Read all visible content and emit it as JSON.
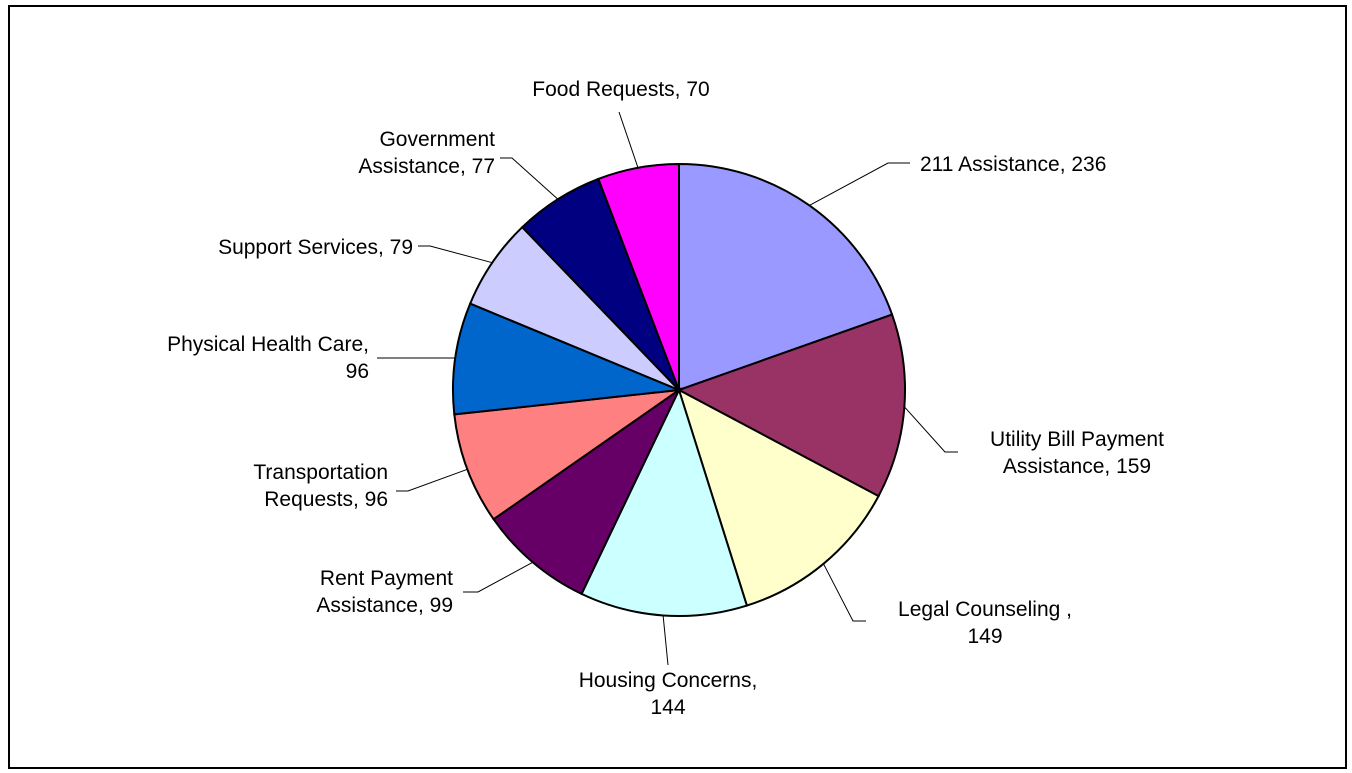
{
  "chart_data": {
    "type": "pie",
    "title": "",
    "start_angle_deg": 0,
    "direction": "clockwise",
    "slices": [
      {
        "label_lines": [
          "211 Assistance, 236"
        ],
        "category": "211 Assistance",
        "value": 236,
        "color": "#9999ff"
      },
      {
        "label_lines": [
          "Utility Bill Payment",
          "Assistance, 159"
        ],
        "category": "Utility Bill Payment Assistance",
        "value": 159,
        "color": "#993366"
      },
      {
        "label_lines": [
          "Legal Counseling ,",
          "149"
        ],
        "category": "Legal Counseling",
        "value": 149,
        "color": "#ffffcc"
      },
      {
        "label_lines": [
          "Housing Concerns,",
          "144"
        ],
        "category": "Housing Concerns",
        "value": 144,
        "color": "#ccffff"
      },
      {
        "label_lines": [
          "Rent Payment",
          "Assistance, 99"
        ],
        "category": "Rent Payment Assistance",
        "value": 99,
        "color": "#660066"
      },
      {
        "label_lines": [
          "Transportation",
          "Requests, 96"
        ],
        "category": "Transportation Requests",
        "value": 96,
        "color": "#ff8080"
      },
      {
        "label_lines": [
          "Physical Health Care,",
          "96"
        ],
        "category": "Physical Health Care",
        "value": 96,
        "color": "#0066cc"
      },
      {
        "label_lines": [
          "Support Services, 79"
        ],
        "category": "Support Services",
        "value": 79,
        "color": "#ccccff"
      },
      {
        "label_lines": [
          "Government",
          "Assistance, 77"
        ],
        "category": "Government Assistance",
        "value": 77,
        "color": "#000080"
      },
      {
        "label_lines": [
          "Food Requests, 70"
        ],
        "category": "Food Requests",
        "value": 70,
        "color": "#ff00ff"
      }
    ]
  }
}
